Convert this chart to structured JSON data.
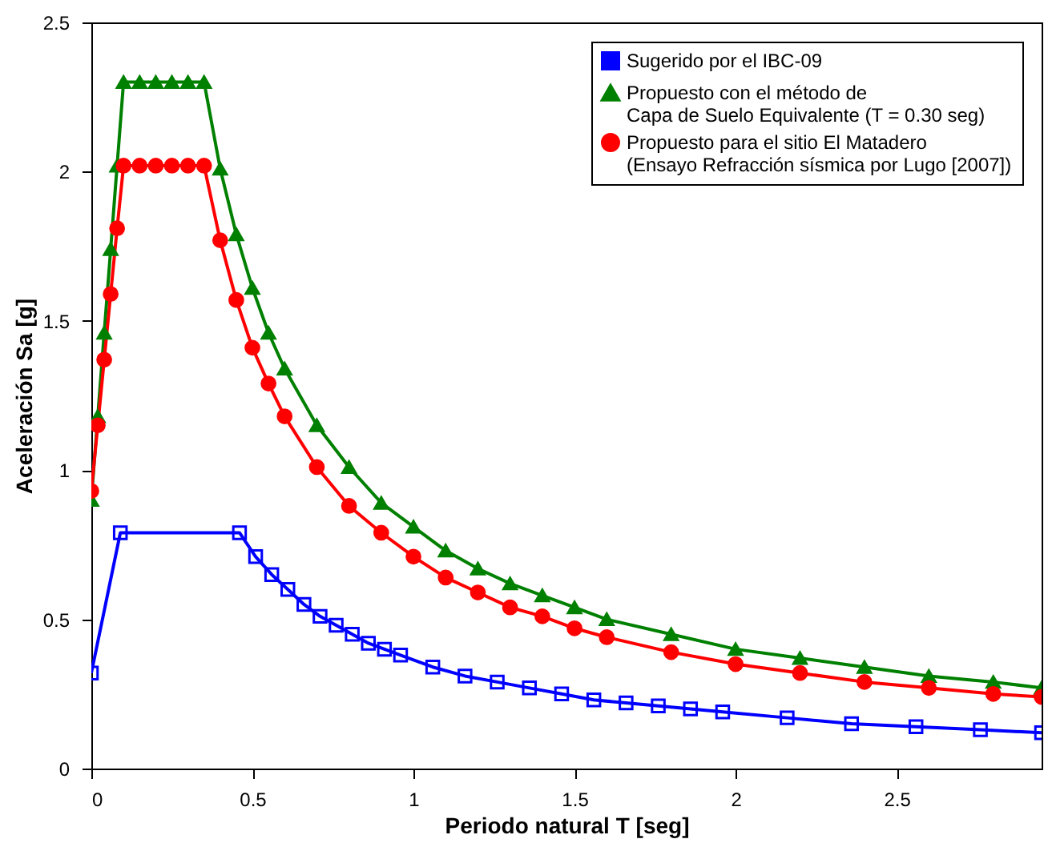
{
  "chart_data": {
    "type": "line",
    "xlabel": "Periodo natural T [seg]",
    "ylabel": "Aceleración Sa [g]",
    "xlim": [
      0,
      2.95
    ],
    "ylim": [
      0,
      2.5
    ],
    "xticks": [
      0,
      0.5,
      1,
      1.5,
      2,
      2.5
    ],
    "yticks": [
      0,
      0.5,
      1,
      1.5,
      2,
      2.5
    ],
    "legend": "top right",
    "series": [
      {
        "name": "Sugerido por el IBC-09",
        "color": "#0000ff",
        "marker": "square",
        "x": [
          0,
          0.09,
          0.46,
          0.51,
          0.56,
          0.61,
          0.66,
          0.71,
          0.76,
          0.81,
          0.86,
          0.91,
          0.96,
          1.06,
          1.16,
          1.26,
          1.36,
          1.46,
          1.56,
          1.66,
          1.76,
          1.86,
          1.96,
          2.16,
          2.36,
          2.56,
          2.76,
          2.95
        ],
        "values": [
          0.32,
          0.79,
          0.79,
          0.71,
          0.65,
          0.6,
          0.55,
          0.51,
          0.48,
          0.45,
          0.42,
          0.4,
          0.38,
          0.34,
          0.31,
          0.29,
          0.27,
          0.25,
          0.23,
          0.22,
          0.21,
          0.2,
          0.19,
          0.17,
          0.15,
          0.14,
          0.13,
          0.12
        ]
      },
      {
        "name": "Propuesto con el método de\nCapa de Suelo Equivalente (T = 0.30 seg)",
        "color": "#008000",
        "marker": "triangle",
        "x": [
          0,
          0.02,
          0.04,
          0.06,
          0.08,
          0.1,
          0.15,
          0.2,
          0.25,
          0.3,
          0.35,
          0.4,
          0.45,
          0.5,
          0.55,
          0.6,
          0.7,
          0.8,
          0.9,
          1.0,
          1.1,
          1.2,
          1.3,
          1.4,
          1.5,
          1.6,
          1.8,
          2.0,
          2.2,
          2.4,
          2.6,
          2.8,
          2.95
        ],
        "values": [
          0.9,
          1.18,
          1.46,
          1.74,
          2.02,
          2.3,
          2.3,
          2.3,
          2.3,
          2.3,
          2.3,
          2.01,
          1.79,
          1.61,
          1.46,
          1.34,
          1.15,
          1.01,
          0.89,
          0.81,
          0.73,
          0.67,
          0.62,
          0.58,
          0.54,
          0.5,
          0.45,
          0.4,
          0.37,
          0.34,
          0.31,
          0.29,
          0.27
        ]
      },
      {
        "name": "Propuesto para el sitio El Matadero\n(Ensayo Refracción sísmica por Lugo [2007])",
        "color": "#ff0000",
        "marker": "circle",
        "x": [
          0,
          0.02,
          0.04,
          0.06,
          0.08,
          0.1,
          0.15,
          0.2,
          0.25,
          0.3,
          0.35,
          0.4,
          0.45,
          0.5,
          0.55,
          0.6,
          0.7,
          0.8,
          0.9,
          1.0,
          1.1,
          1.2,
          1.3,
          1.4,
          1.5,
          1.6,
          1.8,
          2.0,
          2.2,
          2.4,
          2.6,
          2.8,
          2.95
        ],
        "values": [
          0.93,
          1.15,
          1.37,
          1.59,
          1.81,
          2.02,
          2.02,
          2.02,
          2.02,
          2.02,
          2.02,
          1.77,
          1.57,
          1.41,
          1.29,
          1.18,
          1.01,
          0.88,
          0.79,
          0.71,
          0.64,
          0.59,
          0.54,
          0.51,
          0.47,
          0.44,
          0.39,
          0.35,
          0.32,
          0.29,
          0.27,
          0.25,
          0.24
        ]
      }
    ]
  }
}
